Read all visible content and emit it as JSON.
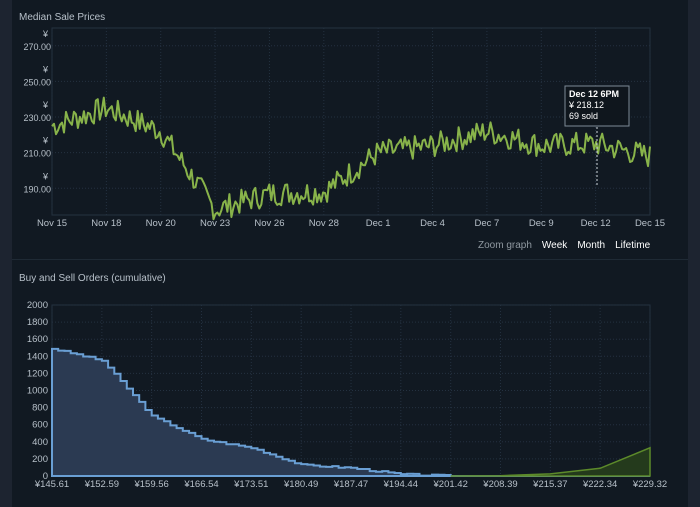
{
  "median_chart": {
    "title": "Median Sale Prices",
    "x_ticks": [
      "Nov 15",
      "Nov 18",
      "Nov 20",
      "Nov 23",
      "Nov 26",
      "Nov 28",
      "Dec 1",
      "Dec 4",
      "Dec 7",
      "Dec 9",
      "Dec 12",
      "Dec 15"
    ],
    "y_ticks": [
      "270.00",
      "250.00",
      "230.00",
      "210.00",
      "190.00"
    ],
    "y_currency": "¥",
    "line_color": "#88b34a",
    "tooltip": {
      "time": "Dec 12 6PM",
      "price": "¥ 218.12",
      "sold": "69 sold"
    }
  },
  "zoom": {
    "label": "Zoom graph",
    "options": [
      "Week",
      "Month",
      "Lifetime"
    ]
  },
  "orders_chart": {
    "title": "Buy and Sell Orders (cumulative)",
    "y_ticks": [
      "2000",
      "1800",
      "1600",
      "1400",
      "1200",
      "1000",
      "800",
      "600",
      "400",
      "200",
      "0"
    ],
    "x_ticks": [
      "¥145.61",
      "¥152.59",
      "¥159.56",
      "¥166.54",
      "¥173.51",
      "¥180.49",
      "¥187.47",
      "¥194.44",
      "¥201.42",
      "¥208.39",
      "¥215.37",
      "¥222.34",
      "¥229.32"
    ],
    "buy_color": "#6a9fd4",
    "sell_color": "#5c8a2a"
  },
  "chart_data": [
    {
      "type": "line",
      "title": "Median Sale Prices",
      "x": [
        "Nov 15",
        "Nov 18",
        "Nov 20",
        "Nov 23",
        "Nov 26",
        "Nov 28",
        "Dec 1",
        "Dec 4",
        "Dec 7",
        "Dec 9",
        "Dec 12",
        "Dec 15"
      ],
      "series": [
        {
          "values": [
            225,
            235,
            222,
            178,
            187,
            188,
            210,
            214,
            222,
            214,
            215,
            208
          ]
        }
      ],
      "ylim": [
        175,
        280
      ],
      "grid": true
    },
    {
      "type": "area",
      "title": "Buy and Sell Orders (cumulative)",
      "x": [
        145.61,
        152.59,
        159.56,
        166.54,
        173.51,
        180.49,
        187.47,
        194.44,
        201.42,
        208.39,
        215.37,
        222.34,
        229.32
      ],
      "series": [
        {
          "values": [
            1490,
            1350,
            700,
            430,
            330,
            130,
            95,
            20,
            0,
            0,
            0,
            0,
            0
          ]
        },
        {
          "values": [
            0,
            0,
            0,
            0,
            0,
            0,
            0,
            0,
            0,
            3,
            25,
            90,
            330
          ]
        }
      ],
      "ylim": [
        0,
        2000
      ],
      "grid": true
    }
  ]
}
